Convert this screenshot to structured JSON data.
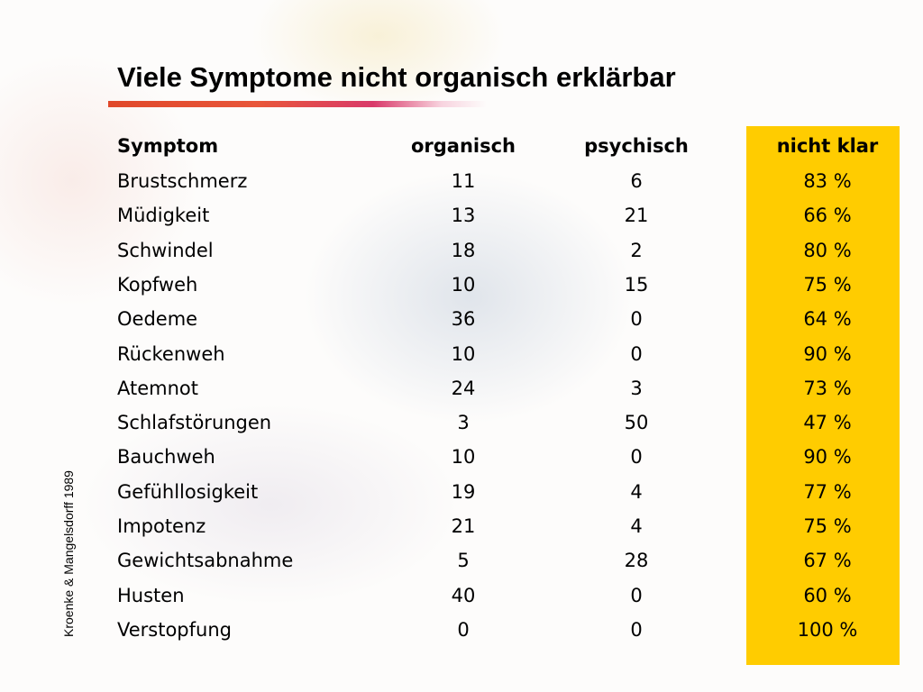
{
  "title": "Viele Symptome nicht organisch erklärbar",
  "source": "Kroenke & Mangelsdorff 1989",
  "table": {
    "header": [
      "Symptom",
      "organisch",
      "psychisch",
      "nicht klar"
    ],
    "rows": [
      [
        "Brustschmerz",
        "11",
        "6",
        "83 %"
      ],
      [
        "Müdigkeit",
        "13",
        "21",
        "66 %"
      ],
      [
        "Schwindel",
        "18",
        "2",
        "80 %"
      ],
      [
        "Kopfweh",
        "10",
        "15",
        "75 %"
      ],
      [
        "Oedeme",
        "36",
        "0",
        "64 %"
      ],
      [
        "Rückenweh",
        "10",
        "0",
        "90 %"
      ],
      [
        "Atemnot",
        "24",
        "3",
        "73 %"
      ],
      [
        "Schlafstörungen",
        "3",
        "50",
        "47 %"
      ],
      [
        "Bauchweh",
        "10",
        "0",
        "90 %"
      ],
      [
        "Gefühllosigkeit",
        "19",
        "4",
        "77 %"
      ],
      [
        "Impotenz",
        "21",
        "4",
        "75 %"
      ],
      [
        "Gewichtsabnahme",
        "5",
        "28",
        "67 %"
      ],
      [
        "Husten",
        "40",
        "0",
        "60 %"
      ],
      [
        "Verstopfung",
        "0",
        "0",
        "100 %"
      ]
    ]
  }
}
